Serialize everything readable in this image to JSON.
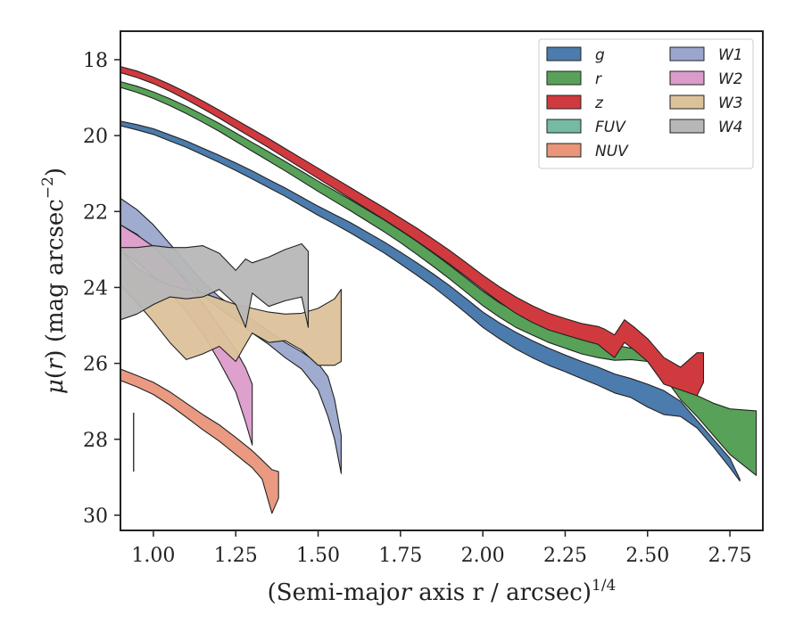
{
  "chart_data": {
    "type": "area",
    "xlabel": "(Semi-major axis r / arcsec)^1/4",
    "ylabel": "μ(r) (mag arcsec^−2)",
    "xlim": [
      0.9,
      2.85
    ],
    "ylim": [
      30.4,
      17.25
    ],
    "y_inverted": true,
    "xticks": [
      "1.00",
      "1.25",
      "1.50",
      "1.75",
      "2.00",
      "2.25",
      "2.50",
      "2.75"
    ],
    "xtick_values": [
      1.0,
      1.25,
      1.5,
      1.75,
      2.0,
      2.25,
      2.5,
      2.75
    ],
    "yticks": [
      "18",
      "20",
      "22",
      "24",
      "26",
      "28",
      "30"
    ],
    "ytick_values": [
      18,
      20,
      22,
      24,
      26,
      28,
      30
    ],
    "legend_position": "top-right",
    "legend_columns": 2,
    "error_bar": {
      "x": 0.94,
      "y_low": 27.3,
      "y_high": 28.85
    },
    "series": [
      {
        "name": "g",
        "color": "#4c7bad",
        "x": [
          0.9,
          0.95,
          1.0,
          1.05,
          1.1,
          1.15,
          1.2,
          1.25,
          1.3,
          1.35,
          1.4,
          1.45,
          1.5,
          1.55,
          1.6,
          1.65,
          1.7,
          1.75,
          1.8,
          1.85,
          1.9,
          1.95,
          2.0,
          2.05,
          2.1,
          2.15,
          2.2,
          2.25,
          2.3,
          2.35,
          2.4,
          2.45,
          2.5,
          2.55,
          2.6,
          2.65,
          2.7,
          2.75,
          2.78
        ],
        "lower": [
          19.62,
          19.71,
          19.82,
          19.98,
          20.14,
          20.33,
          20.52,
          20.72,
          20.93,
          21.16,
          21.38,
          21.62,
          21.86,
          22.08,
          22.3,
          22.55,
          22.8,
          23.07,
          23.35,
          23.65,
          23.96,
          24.3,
          24.65,
          24.93,
          25.18,
          25.4,
          25.6,
          25.78,
          25.95,
          26.1,
          26.28,
          26.4,
          26.55,
          26.72,
          27.0,
          27.5,
          28.0,
          28.5,
          29.05
        ],
        "upper": [
          19.74,
          19.85,
          19.97,
          20.14,
          20.31,
          20.51,
          20.71,
          20.92,
          21.14,
          21.37,
          21.6,
          21.85,
          22.1,
          22.33,
          22.57,
          22.83,
          23.09,
          23.38,
          23.68,
          23.99,
          24.33,
          24.68,
          25.05,
          25.35,
          25.62,
          25.85,
          26.05,
          26.22,
          26.4,
          26.58,
          26.78,
          26.9,
          27.15,
          27.35,
          27.4,
          27.7,
          28.2,
          28.75,
          29.1
        ]
      },
      {
        "name": "r",
        "color": "#58a158",
        "x": [
          0.9,
          0.95,
          1.0,
          1.05,
          1.1,
          1.15,
          1.2,
          1.25,
          1.3,
          1.35,
          1.4,
          1.45,
          1.5,
          1.55,
          1.6,
          1.65,
          1.7,
          1.75,
          1.8,
          1.85,
          1.9,
          1.95,
          2.0,
          2.05,
          2.1,
          2.15,
          2.2,
          2.25,
          2.3,
          2.35,
          2.4,
          2.45,
          2.5,
          2.55,
          2.6,
          2.65,
          2.7,
          2.75,
          2.83
        ],
        "lower": [
          18.58,
          18.7,
          18.85,
          19.03,
          19.23,
          19.45,
          19.68,
          19.93,
          20.18,
          20.43,
          20.68,
          20.94,
          21.2,
          21.45,
          21.7,
          21.96,
          22.22,
          22.5,
          22.79,
          23.1,
          23.42,
          23.76,
          24.1,
          24.4,
          24.65,
          24.85,
          25.02,
          25.18,
          25.3,
          25.42,
          25.52,
          25.6,
          25.7,
          26.05,
          26.55,
          26.85,
          27.05,
          27.2,
          27.25
        ],
        "upper": [
          18.73,
          18.86,
          19.02,
          19.21,
          19.42,
          19.65,
          19.89,
          20.15,
          20.41,
          20.67,
          20.93,
          21.2,
          21.47,
          21.73,
          21.99,
          22.26,
          22.53,
          22.82,
          23.13,
          23.45,
          23.78,
          24.13,
          24.48,
          24.78,
          25.05,
          25.25,
          25.45,
          25.6,
          25.75,
          25.85,
          25.92,
          25.9,
          25.95,
          26.35,
          26.95,
          27.4,
          27.9,
          28.4,
          28.95
        ]
      },
      {
        "name": "z",
        "color": "#d03a3e",
        "x": [
          0.9,
          0.95,
          1.0,
          1.05,
          1.1,
          1.15,
          1.2,
          1.25,
          1.3,
          1.35,
          1.4,
          1.45,
          1.5,
          1.55,
          1.6,
          1.65,
          1.7,
          1.75,
          1.8,
          1.85,
          1.9,
          1.95,
          2.0,
          2.05,
          2.1,
          2.15,
          2.2,
          2.25,
          2.3,
          2.35,
          2.37,
          2.4,
          2.43,
          2.46,
          2.5,
          2.55,
          2.6,
          2.65,
          2.67
        ],
        "lower": [
          18.18,
          18.3,
          18.46,
          18.65,
          18.86,
          19.09,
          19.33,
          19.58,
          19.83,
          20.08,
          20.34,
          20.6,
          20.86,
          21.12,
          21.38,
          21.64,
          21.9,
          22.17,
          22.44,
          22.73,
          23.03,
          23.35,
          23.68,
          23.98,
          24.25,
          24.48,
          24.68,
          24.82,
          24.95,
          25.03,
          25.1,
          25.25,
          24.85,
          25.05,
          25.35,
          25.85,
          26.1,
          25.72,
          25.72
        ],
        "upper": [
          18.34,
          18.47,
          18.63,
          18.83,
          19.05,
          19.29,
          19.54,
          19.8,
          20.06,
          20.32,
          20.59,
          20.86,
          21.13,
          21.4,
          21.67,
          21.94,
          22.21,
          22.49,
          22.78,
          23.08,
          23.39,
          23.72,
          24.06,
          24.38,
          24.68,
          24.92,
          25.12,
          25.25,
          25.38,
          25.5,
          25.65,
          25.85,
          25.45,
          25.65,
          25.95,
          26.55,
          26.7,
          26.85,
          26.5
        ]
      },
      {
        "name": "FUV",
        "color": "#74bba2",
        "x": [],
        "lower": [],
        "upper": []
      },
      {
        "name": "NUV",
        "color": "#e8957a",
        "x": [
          0.9,
          0.95,
          1.0,
          1.05,
          1.1,
          1.15,
          1.2,
          1.25,
          1.3,
          1.33,
          1.36,
          1.38
        ],
        "lower": [
          26.15,
          26.32,
          26.5,
          26.75,
          27.05,
          27.35,
          27.62,
          27.95,
          28.3,
          28.55,
          28.8,
          28.85
        ],
        "upper": [
          26.45,
          26.62,
          26.82,
          27.1,
          27.42,
          27.75,
          28.05,
          28.4,
          28.75,
          29.05,
          29.95,
          29.55
        ]
      },
      {
        "name": "W1",
        "color": "#9aa6cc",
        "x": [
          0.9,
          0.95,
          1.0,
          1.05,
          1.1,
          1.15,
          1.2,
          1.25,
          1.3,
          1.35,
          1.4,
          1.45,
          1.5,
          1.53,
          1.55,
          1.57
        ],
        "lower": [
          21.65,
          21.95,
          22.35,
          22.85,
          23.35,
          23.85,
          24.25,
          24.55,
          24.85,
          25.15,
          25.45,
          25.7,
          26.0,
          26.35,
          26.95,
          27.9
        ],
        "upper": [
          22.35,
          22.6,
          23.0,
          23.4,
          23.8,
          24.2,
          24.55,
          24.85,
          25.2,
          25.5,
          25.85,
          26.15,
          26.7,
          27.4,
          28.0,
          28.9
        ]
      },
      {
        "name": "W2",
        "color": "#dc9ccb",
        "x": [
          0.9,
          0.95,
          1.0,
          1.05,
          1.1,
          1.15,
          1.2,
          1.25,
          1.28,
          1.3
        ],
        "lower": [
          22.35,
          22.62,
          22.92,
          23.35,
          23.85,
          24.42,
          25.02,
          25.65,
          26.12,
          26.55
        ],
        "upper": [
          23.05,
          23.32,
          23.72,
          24.15,
          24.62,
          25.22,
          25.95,
          26.75,
          27.55,
          28.15
        ]
      },
      {
        "name": "W3",
        "color": "#dcc29a",
        "x": [
          0.9,
          0.95,
          1.0,
          1.05,
          1.1,
          1.15,
          1.2,
          1.25,
          1.3,
          1.35,
          1.4,
          1.45,
          1.5,
          1.55,
          1.57
        ],
        "lower": [
          23.0,
          23.5,
          23.75,
          23.95,
          24.05,
          24.15,
          24.3,
          24.45,
          24.55,
          24.65,
          24.7,
          24.68,
          24.55,
          24.3,
          24.05
        ],
        "upper": [
          23.95,
          24.4,
          24.9,
          25.45,
          25.9,
          25.75,
          25.55,
          25.95,
          25.2,
          25.45,
          25.4,
          25.65,
          26.05,
          26.05,
          25.95
        ]
      },
      {
        "name": "W4",
        "color": "#b7b7b7",
        "x": [
          0.9,
          0.95,
          1.0,
          1.05,
          1.1,
          1.15,
          1.2,
          1.25,
          1.28,
          1.3,
          1.35,
          1.4,
          1.45,
          1.47
        ],
        "lower": [
          22.95,
          22.95,
          22.9,
          22.95,
          22.95,
          22.9,
          23.1,
          23.55,
          23.25,
          23.35,
          23.2,
          23.0,
          22.85,
          23.05
        ],
        "upper": [
          24.85,
          24.7,
          24.45,
          24.25,
          24.3,
          24.25,
          24.05,
          24.45,
          25.05,
          24.15,
          24.5,
          24.35,
          24.25,
          25.05
        ]
      }
    ]
  }
}
